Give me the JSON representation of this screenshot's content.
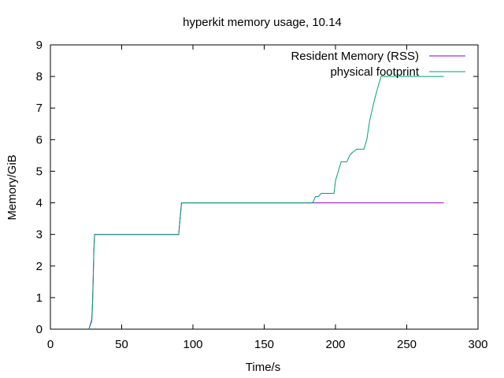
{
  "chart_data": {
    "type": "line",
    "title": "hyperkit memory usage, 10.14",
    "xlabel": "Time/s",
    "ylabel": "Memory/GiB",
    "xlim": [
      0,
      300
    ],
    "ylim": [
      0,
      9
    ],
    "xticks": [
      0,
      50,
      100,
      150,
      200,
      250,
      300
    ],
    "yticks": [
      0,
      1,
      2,
      3,
      4,
      5,
      6,
      7,
      8,
      9
    ],
    "grid": false,
    "legend_position": "top-right",
    "series": [
      {
        "name": "Resident Memory (RSS)",
        "color": "#9400d3",
        "points": [
          [
            27,
            0
          ],
          [
            29,
            0.3
          ],
          [
            29.5,
            0.8
          ],
          [
            30,
            1.6
          ],
          [
            30.5,
            2.5
          ],
          [
            31,
            3
          ],
          [
            90,
            3
          ],
          [
            92,
            4
          ],
          [
            276,
            4
          ]
        ]
      },
      {
        "name": "physical footprint",
        "color": "#009e73",
        "points": [
          [
            27,
            0
          ],
          [
            29,
            0.25
          ],
          [
            29.5,
            0.7
          ],
          [
            30,
            1.5
          ],
          [
            30.5,
            2.5
          ],
          [
            31,
            3
          ],
          [
            90,
            3
          ],
          [
            92,
            4
          ],
          [
            184,
            4
          ],
          [
            186,
            4.2
          ],
          [
            188,
            4.2
          ],
          [
            190,
            4.3
          ],
          [
            195,
            4.3
          ],
          [
            199,
            4.3
          ],
          [
            200,
            4.7
          ],
          [
            202,
            5
          ],
          [
            204,
            5.3
          ],
          [
            208,
            5.3
          ],
          [
            210,
            5.5
          ],
          [
            212,
            5.6
          ],
          [
            215,
            5.7
          ],
          [
            220,
            5.7
          ],
          [
            222,
            6
          ],
          [
            224,
            6.6
          ],
          [
            227,
            7.2
          ],
          [
            230,
            7.7
          ],
          [
            232,
            8
          ],
          [
            276,
            8
          ]
        ]
      }
    ]
  }
}
